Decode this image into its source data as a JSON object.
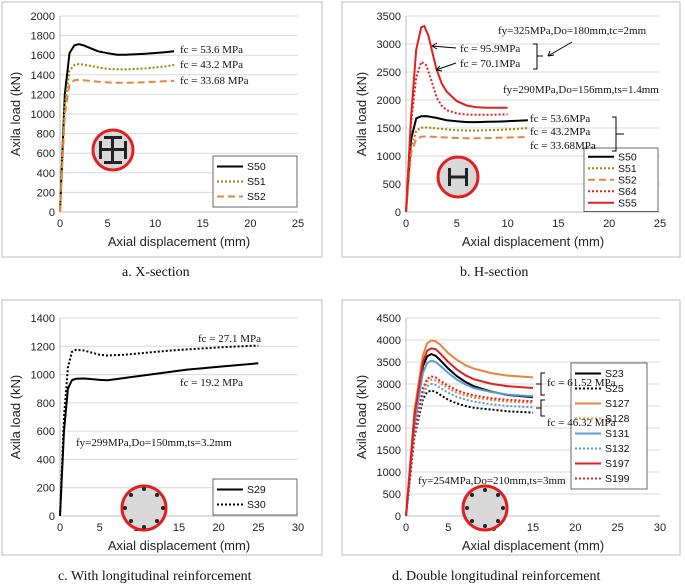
{
  "chart_data": [
    {
      "id": "a",
      "type": "line",
      "caption": "a.    X-section",
      "xlabel": "Axial displacement (mm)",
      "ylabel": "Axila load (kN)",
      "xlim": [
        0,
        25
      ],
      "ylim": [
        0,
        2000
      ],
      "xticks": [
        0,
        5,
        10,
        15,
        20,
        25
      ],
      "yticks": [
        0,
        200,
        400,
        600,
        800,
        1000,
        1200,
        1400,
        1600,
        1800,
        2000
      ],
      "legend": [
        "S50",
        "S51",
        "S52"
      ],
      "annotations": [
        "fc = 53.6 MPa",
        "fc = 43.2 MPa",
        "fc = 33.68 MPa"
      ],
      "series": [
        {
          "name": "S50",
          "color": "#000000",
          "dash": "",
          "x": [
            0,
            0.5,
            1,
            1.5,
            2,
            2.5,
            3,
            4,
            5,
            6,
            7,
            8,
            9,
            10,
            11,
            12
          ],
          "y": [
            0,
            1200,
            1620,
            1700,
            1712,
            1700,
            1680,
            1640,
            1620,
            1605,
            1605,
            1610,
            1615,
            1622,
            1630,
            1640
          ]
        },
        {
          "name": "S51",
          "color": "#9a8a00",
          "dash": "2,2",
          "x": [
            0,
            0.5,
            1,
            1.5,
            2,
            3,
            4,
            5,
            6,
            7,
            8,
            9,
            10,
            11,
            12
          ],
          "y": [
            0,
            1100,
            1440,
            1500,
            1510,
            1495,
            1475,
            1460,
            1455,
            1455,
            1460,
            1465,
            1475,
            1485,
            1500
          ]
        },
        {
          "name": "S52",
          "color": "#e8843a",
          "dash": "7,4",
          "x": [
            0,
            0.5,
            1,
            1.5,
            2,
            3,
            4,
            5,
            6,
            7,
            8,
            9,
            10,
            11,
            12
          ],
          "y": [
            0,
            1000,
            1300,
            1345,
            1350,
            1340,
            1330,
            1322,
            1318,
            1318,
            1320,
            1325,
            1330,
            1335,
            1340
          ]
        }
      ]
    },
    {
      "id": "b",
      "type": "line",
      "caption": "b.    H-section",
      "xlabel": "Axial displacement (mm)",
      "ylabel": "Axila load (kN)",
      "xlim": [
        0,
        25
      ],
      "ylim": [
        0,
        3500
      ],
      "xticks": [
        0,
        5,
        10,
        15,
        20,
        25
      ],
      "yticks": [
        0,
        500,
        1000,
        1500,
        2000,
        2500,
        3000,
        3500
      ],
      "legend": [
        "S50",
        "S51",
        "S52",
        "S64",
        "S55"
      ],
      "annotations": [
        "fy=325MPa,Do=180mm,tc=2mm",
        "fc = 95.9MPa",
        "fc = 70.1MPa",
        "fy=290MPa,Do=156mm,ts=1.4mm",
        "fc = 53.6MPa",
        "fc = 43.2MPa",
        "fc = 33.68MPa"
      ],
      "series": [
        {
          "name": "S50",
          "color": "#000000",
          "dash": "",
          "x": [
            0,
            0.5,
            1,
            1.5,
            2,
            3,
            4,
            5,
            6,
            7,
            8,
            9,
            10,
            11,
            12
          ],
          "y": [
            0,
            1300,
            1670,
            1710,
            1712,
            1680,
            1640,
            1620,
            1605,
            1605,
            1610,
            1615,
            1622,
            1630,
            1640
          ]
        },
        {
          "name": "S51",
          "color": "#9a8a00",
          "dash": "2,2",
          "x": [
            0,
            0.5,
            1,
            1.5,
            2,
            3,
            4,
            5,
            6,
            7,
            8,
            9,
            10,
            11,
            12
          ],
          "y": [
            0,
            1150,
            1450,
            1505,
            1510,
            1495,
            1475,
            1460,
            1455,
            1455,
            1460,
            1465,
            1475,
            1485,
            1500
          ]
        },
        {
          "name": "S52",
          "color": "#e8843a",
          "dash": "7,4",
          "x": [
            0,
            0.5,
            1,
            1.5,
            2,
            3,
            4,
            5,
            6,
            7,
            8,
            9,
            10,
            11,
            12
          ],
          "y": [
            0,
            1050,
            1300,
            1345,
            1350,
            1340,
            1330,
            1322,
            1318,
            1318,
            1320,
            1325,
            1330,
            1335,
            1340
          ]
        },
        {
          "name": "S64",
          "color": "#e02020",
          "dash": "2,2",
          "x": [
            0,
            0.5,
            1,
            1.5,
            2,
            2.5,
            3,
            3.5,
            4,
            5,
            6,
            7,
            8,
            9,
            10
          ],
          "y": [
            0,
            1600,
            2400,
            2680,
            2620,
            2350,
            2050,
            1900,
            1820,
            1760,
            1740,
            1735,
            1735,
            1740,
            1745
          ]
        },
        {
          "name": "S55",
          "color": "#e02020",
          "dash": "",
          "x": [
            0,
            0.5,
            1,
            1.5,
            1.8,
            2.2,
            2.6,
            3,
            3.5,
            4,
            5,
            6,
            7,
            8,
            9,
            10
          ],
          "y": [
            0,
            1700,
            2900,
            3300,
            3320,
            3150,
            2850,
            2550,
            2300,
            2150,
            1980,
            1900,
            1870,
            1860,
            1860,
            1860
          ]
        }
      ]
    },
    {
      "id": "c",
      "type": "line",
      "caption": "c.    With longitudinal reinforcement",
      "xlabel": "Axial displacement (mm)",
      "ylabel": "Axila load (kN)",
      "xlim": [
        0,
        30
      ],
      "ylim": [
        0,
        1400
      ],
      "xticks": [
        0,
        5,
        10,
        15,
        20,
        25,
        30
      ],
      "yticks": [
        0,
        200,
        400,
        600,
        800,
        1000,
        1200,
        1400
      ],
      "legend": [
        "S29",
        "S30"
      ],
      "annotations": [
        "fc = 27.1 MPa",
        "fc = 19.2 MPa",
        "fy=299MPa,Do=150mm,ts=3.2mm"
      ],
      "series": [
        {
          "name": "S29",
          "color": "#000000",
          "dash": "",
          "x": [
            0,
            0.5,
            1,
            1.5,
            2,
            3,
            4,
            5,
            6,
            8,
            10,
            12,
            14,
            16,
            18,
            20,
            22,
            24,
            25
          ],
          "y": [
            0,
            600,
            900,
            960,
            970,
            972,
            968,
            962,
            960,
            975,
            990,
            1005,
            1020,
            1035,
            1045,
            1055,
            1065,
            1075,
            1080
          ]
        },
        {
          "name": "S30",
          "color": "#000000",
          "dash": "2,2",
          "x": [
            0,
            0.5,
            1,
            1.5,
            2,
            3,
            4,
            5,
            6,
            8,
            10,
            12,
            14,
            16,
            18,
            20,
            22,
            24,
            25
          ],
          "y": [
            0,
            700,
            1050,
            1160,
            1175,
            1170,
            1155,
            1140,
            1135,
            1140,
            1150,
            1160,
            1170,
            1178,
            1185,
            1192,
            1198,
            1203,
            1205
          ]
        }
      ]
    },
    {
      "id": "d",
      "type": "line",
      "caption": "d.    Double longitudinal reinforcement",
      "xlabel": "Axial displacement (mm)",
      "ylabel": "Axila load (kN)",
      "xlim": [
        0,
        30
      ],
      "ylim": [
        0,
        4500
      ],
      "xticks": [
        0,
        5,
        10,
        15,
        20,
        25,
        30
      ],
      "yticks": [
        0,
        500,
        1000,
        1500,
        2000,
        2500,
        3000,
        3500,
        4000,
        4500
      ],
      "legend": [
        "S23",
        "S25",
        "S127",
        "S128",
        "S131",
        "S132",
        "S197",
        "S199"
      ],
      "annotations": [
        "fc = 61.52 MPa",
        "fc = 46.32 MPa",
        "fy=254MPa,Do=210mm,ts=3mm"
      ],
      "series": [
        {
          "name": "S23",
          "color": "#000000",
          "dash": "",
          "x": [
            0,
            1,
            2,
            2.5,
            3,
            3.5,
            4,
            5,
            6,
            7,
            8,
            10,
            12,
            15
          ],
          "y": [
            0,
            2200,
            3400,
            3630,
            3680,
            3640,
            3550,
            3350,
            3180,
            3050,
            2950,
            2830,
            2750,
            2700
          ]
        },
        {
          "name": "S25",
          "color": "#000000",
          "dash": "2,2",
          "x": [
            0,
            1,
            2,
            2.5,
            3,
            3.5,
            4,
            5,
            6,
            7,
            8,
            10,
            12,
            15
          ],
          "y": [
            0,
            1800,
            2650,
            2820,
            2850,
            2820,
            2760,
            2640,
            2560,
            2500,
            2460,
            2420,
            2380,
            2350
          ]
        },
        {
          "name": "S127",
          "color": "#e8843a",
          "dash": "",
          "x": [
            0,
            1,
            2,
            2.5,
            3,
            3.5,
            4,
            5,
            6,
            7,
            8,
            10,
            12,
            15
          ],
          "y": [
            0,
            2400,
            3650,
            3930,
            3990,
            3970,
            3900,
            3700,
            3550,
            3430,
            3350,
            3250,
            3190,
            3150
          ]
        },
        {
          "name": "S128",
          "color": "#e8843a",
          "dash": "2,2",
          "x": [
            0,
            1,
            2,
            2.5,
            3,
            3.5,
            4,
            5,
            6,
            7,
            8,
            10,
            12,
            15
          ],
          "y": [
            0,
            1950,
            2850,
            3050,
            3100,
            3080,
            3020,
            2900,
            2800,
            2740,
            2690,
            2640,
            2600,
            2570
          ]
        },
        {
          "name": "S131",
          "color": "#5b9bd5",
          "dash": "",
          "x": [
            0,
            1,
            2,
            2.5,
            3,
            3.5,
            4,
            5,
            6,
            7,
            8,
            10,
            12,
            15
          ],
          "y": [
            0,
            2100,
            3250,
            3480,
            3530,
            3500,
            3420,
            3250,
            3100,
            2990,
            2910,
            2820,
            2760,
            2720
          ]
        },
        {
          "name": "S132",
          "color": "#5b9bd5",
          "dash": "2,2",
          "x": [
            0,
            1,
            2,
            2.5,
            3,
            3.5,
            4,
            5,
            6,
            7,
            8,
            10,
            12,
            15
          ],
          "y": [
            0,
            1850,
            2750,
            2950,
            3000,
            2980,
            2920,
            2800,
            2710,
            2650,
            2600,
            2540,
            2500,
            2470
          ]
        },
        {
          "name": "S197",
          "color": "#e02020",
          "dash": "",
          "x": [
            0,
            1,
            2,
            2.5,
            3,
            3.5,
            4,
            5,
            6,
            7,
            8,
            10,
            12,
            15
          ],
          "y": [
            0,
            2300,
            3500,
            3760,
            3810,
            3790,
            3700,
            3500,
            3330,
            3200,
            3110,
            3010,
            2950,
            2910
          ]
        },
        {
          "name": "S199",
          "color": "#e02020",
          "dash": "2,2",
          "x": [
            0,
            1,
            2,
            2.5,
            3,
            3.5,
            4,
            5,
            6,
            7,
            8,
            10,
            12,
            15
          ],
          "y": [
            0,
            1900,
            2900,
            3120,
            3170,
            3150,
            3080,
            2960,
            2860,
            2790,
            2740,
            2680,
            2640,
            2610
          ]
        }
      ]
    }
  ]
}
